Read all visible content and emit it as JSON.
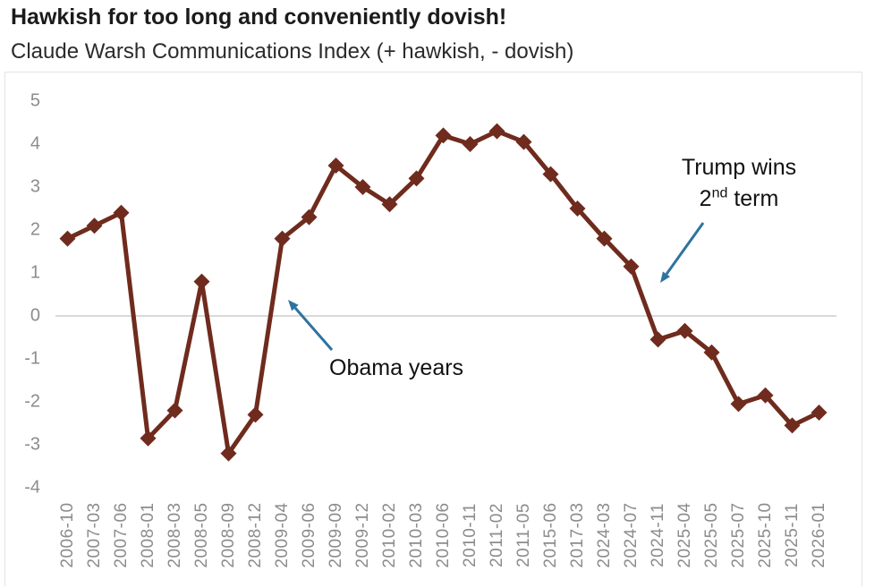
{
  "header": {
    "title": "Hawkish for too long and conveniently dovish!",
    "subtitle": "Claude Warsh Communications Index (+ hawkish, - dovish)"
  },
  "annotations": {
    "obama_label": "Obama years",
    "trump_line1": "Trump wins",
    "trump_line2_num": "2",
    "trump_line2_sup": "nd",
    "trump_line2_rest": " term"
  },
  "chart_data": {
    "type": "line",
    "title": "Hawkish for too long and conveniently dovish!",
    "subtitle": "Claude Warsh Communications Index (+ hawkish, - dovish)",
    "categories": [
      "2006-10",
      "2007-03",
      "2007-06",
      "2008-01",
      "2008-03",
      "2008-05",
      "2008-09",
      "2008-12",
      "2009-04",
      "2009-06",
      "2009-09",
      "2009-12",
      "2010-02",
      "2010-03",
      "2010-06",
      "2010-11",
      "2011-02",
      "2011-05",
      "2015-06",
      "2017-03",
      "2024-03",
      "2024-07",
      "2024-11",
      "2025-04",
      "2025-05",
      "2025-07",
      "2025-10",
      "2025-11",
      "2026-01"
    ],
    "values": [
      1.8,
      2.1,
      2.4,
      -2.85,
      -2.2,
      0.8,
      -3.2,
      -2.3,
      1.8,
      2.3,
      3.5,
      3.0,
      2.6,
      3.2,
      4.2,
      4.0,
      4.3,
      4.05,
      3.3,
      2.5,
      1.8,
      1.15,
      -0.55,
      -0.35,
      -0.85,
      -2.05,
      -1.85,
      -2.55,
      -2.25
    ],
    "ylim": [
      -4,
      5
    ],
    "y_ticks": [
      5,
      4,
      3,
      2,
      1,
      0,
      -1,
      -2,
      -3,
      -4
    ],
    "grid": "zero-line-only",
    "legend": "none",
    "marker": "diamond",
    "series_color": "#6f2b1d",
    "zero_line_color": "#d9d9d9",
    "axis_label_color": "#8c8c8c",
    "arrow_color": "#2e73a0",
    "callouts": [
      {
        "text": "Obama years",
        "points_to_category": "2009-04",
        "arrow_from": [
          371,
          391
        ],
        "arrow_to": [
          322,
          335
        ]
      },
      {
        "text": "Trump wins 2nd term",
        "points_to_category": "2024-11",
        "arrow_from": [
          786,
          249
        ],
        "arrow_to": [
          738,
          316
        ]
      }
    ]
  }
}
